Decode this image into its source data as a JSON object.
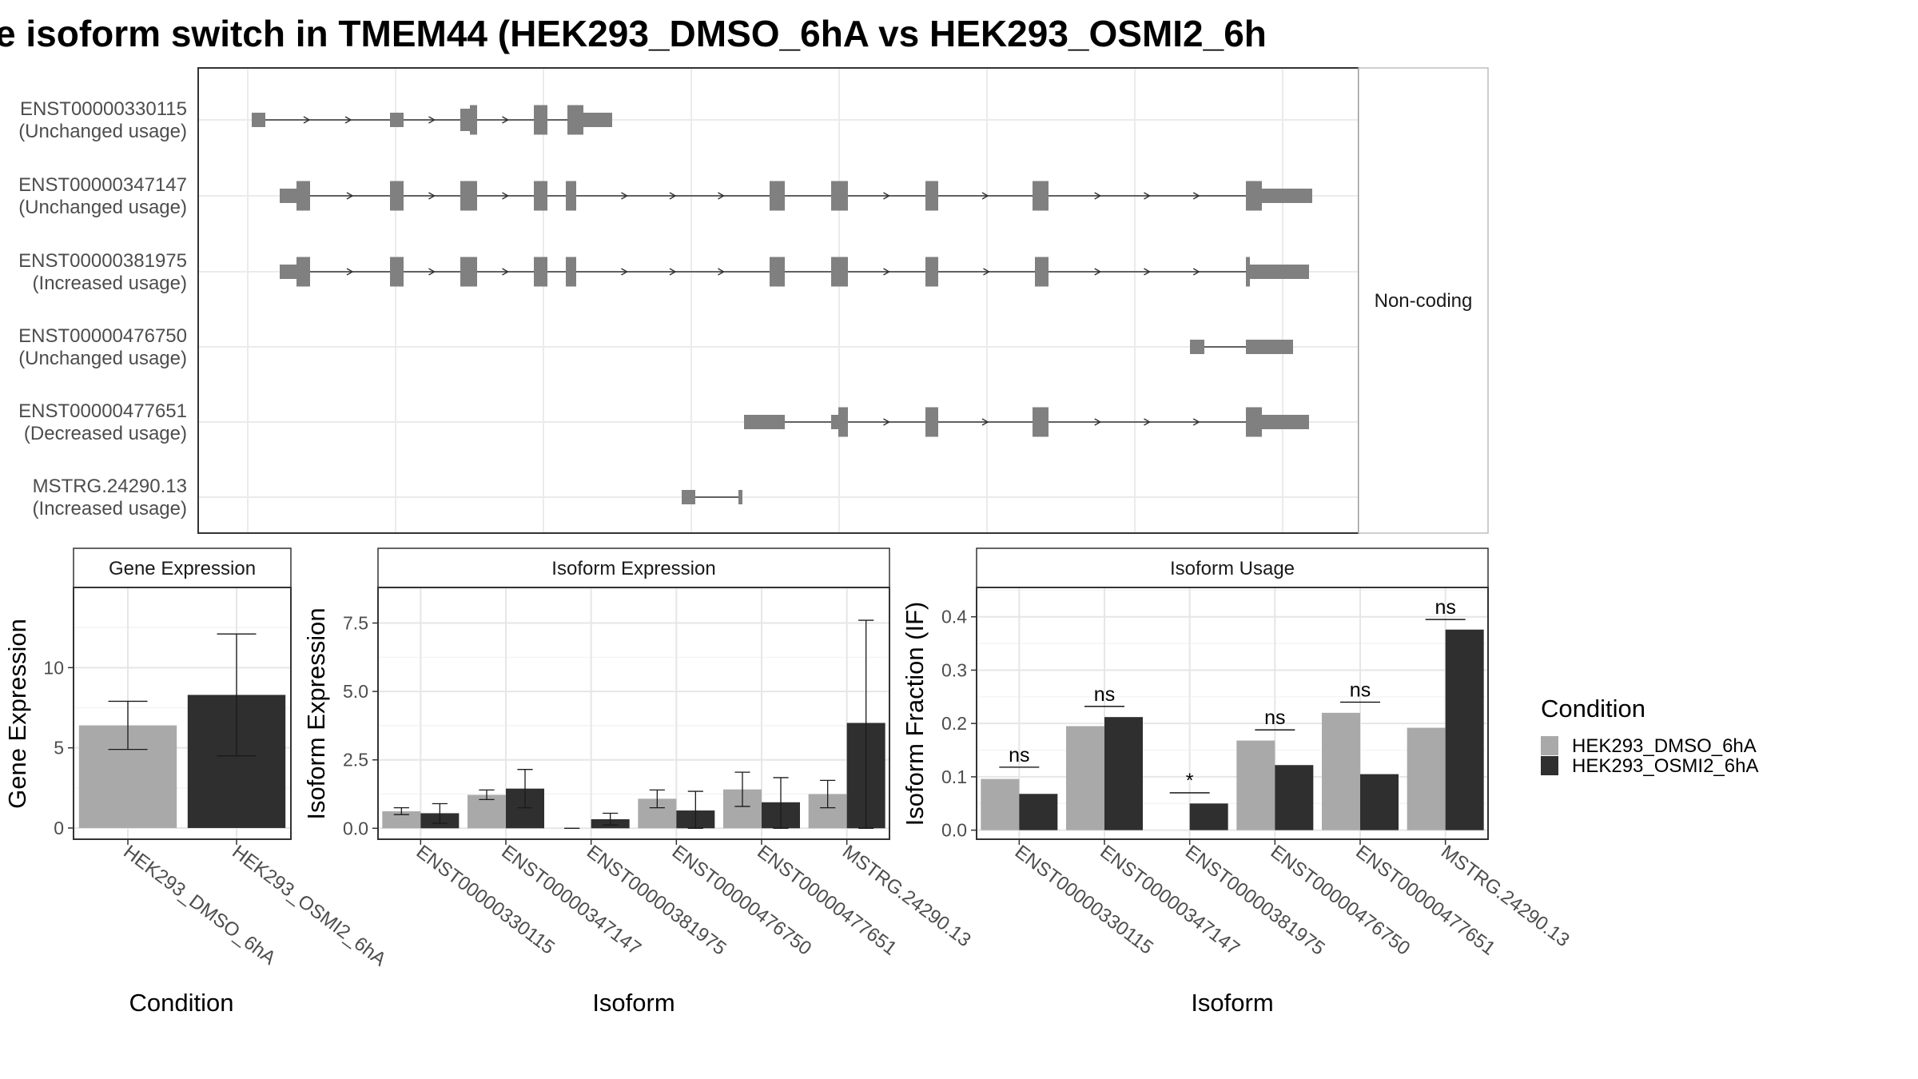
{
  "title": "e isoform switch in TMEM44 (HEK293_DMSO_6hA vs HEK293_OSMI2_6h",
  "colors": {
    "dmso": "#a9a9a9",
    "osmi2": "#2f2f2f",
    "structure": "#808080",
    "panel_border": "#333333",
    "strip_fill": "#ffffff",
    "grid": "#ebebeb",
    "text": "#333333"
  },
  "structure_panel": {
    "facet_label": "Non-coding",
    "transcripts": [
      {
        "id": "ENST00000330115",
        "usage": "(Unchanged usage)"
      },
      {
        "id": "ENST00000347147",
        "usage": "(Unchanged usage)"
      },
      {
        "id": "ENST00000381975",
        "usage": "(Increased usage)"
      },
      {
        "id": "ENST00000476750",
        "usage": "(Unchanged usage)"
      },
      {
        "id": "ENST00000477651",
        "usage": "(Decreased usage)"
      },
      {
        "id": "MSTRG.24290.13",
        "usage": "(Increased usage)"
      }
    ]
  },
  "legend": {
    "title": "Condition",
    "entries": [
      "HEK293_DMSO_6hA",
      "HEK293_OSMI2_6hA"
    ]
  },
  "chart_data": [
    {
      "type": "bar",
      "title": "Gene Expression",
      "xlabel": "Condition",
      "ylabel": "Gene Expression",
      "categories": [
        "HEK293_DMSO_6hA",
        "HEK293_OSMI2_6hA"
      ],
      "values": [
        6.4,
        8.3
      ],
      "err_low": [
        4.9,
        4.5
      ],
      "err_high": [
        7.9,
        12.1
      ],
      "ylim": [
        -0.7,
        15
      ],
      "yticks": [
        0,
        5,
        10
      ],
      "grid": true
    },
    {
      "type": "bar",
      "title": "Isoform Expression",
      "xlabel": "Isoform",
      "ylabel": "Isoform Expression",
      "categories": [
        "ENST00000330115",
        "ENST00000347147",
        "ENST00000381975",
        "ENST00000476750",
        "ENST00000477651",
        "MSTRG.24290.13"
      ],
      "series": [
        {
          "name": "HEK293_DMSO_6hA",
          "values": [
            0.62,
            1.22,
            0,
            1.08,
            1.42,
            1.25
          ],
          "err_low": [
            0.5,
            1.05,
            0,
            0.75,
            0.8,
            0.75
          ],
          "err_high": [
            0.75,
            1.4,
            0,
            1.4,
            2.05,
            1.75
          ]
        },
        {
          "name": "HEK293_OSMI2_6hA",
          "values": [
            0.55,
            1.45,
            0.33,
            0.65,
            0.95,
            3.85
          ],
          "err_low": [
            0.18,
            0.75,
            0.12,
            0,
            0,
            0
          ],
          "err_high": [
            0.9,
            2.15,
            0.55,
            1.35,
            1.85,
            7.6
          ]
        }
      ],
      "ylim": [
        -0.4,
        8.8
      ],
      "yticks": [
        0.0,
        2.5,
        5.0,
        7.5
      ],
      "ytick_labels": [
        "0.0",
        "2.5",
        "5.0",
        "7.5"
      ],
      "grid": true
    },
    {
      "type": "bar",
      "title": "Isoform Usage",
      "xlabel": "Isoform",
      "ylabel": "Isoform Fraction (IF)",
      "categories": [
        "ENST00000330115",
        "ENST00000347147",
        "ENST00000381975",
        "ENST00000476750",
        "ENST00000477651",
        "MSTRG.24290.13"
      ],
      "series": [
        {
          "name": "HEK293_DMSO_6hA",
          "values": [
            0.096,
            0.195,
            0,
            0.168,
            0.22,
            0.192
          ]
        },
        {
          "name": "HEK293_OSMI2_6hA",
          "values": [
            0.068,
            0.212,
            0.05,
            0.122,
            0.105,
            0.376
          ]
        }
      ],
      "significance": [
        "ns",
        "ns",
        "*",
        "ns",
        "ns",
        "ns"
      ],
      "sig_y": [
        0.118,
        0.232,
        0.07,
        0.188,
        0.24,
        0.395
      ],
      "ylim": [
        -0.017,
        0.455
      ],
      "yticks": [
        0.0,
        0.1,
        0.2,
        0.3,
        0.4
      ],
      "ytick_labels": [
        "0.0",
        "0.1",
        "0.2",
        "0.3",
        "0.4"
      ],
      "grid": true
    }
  ]
}
